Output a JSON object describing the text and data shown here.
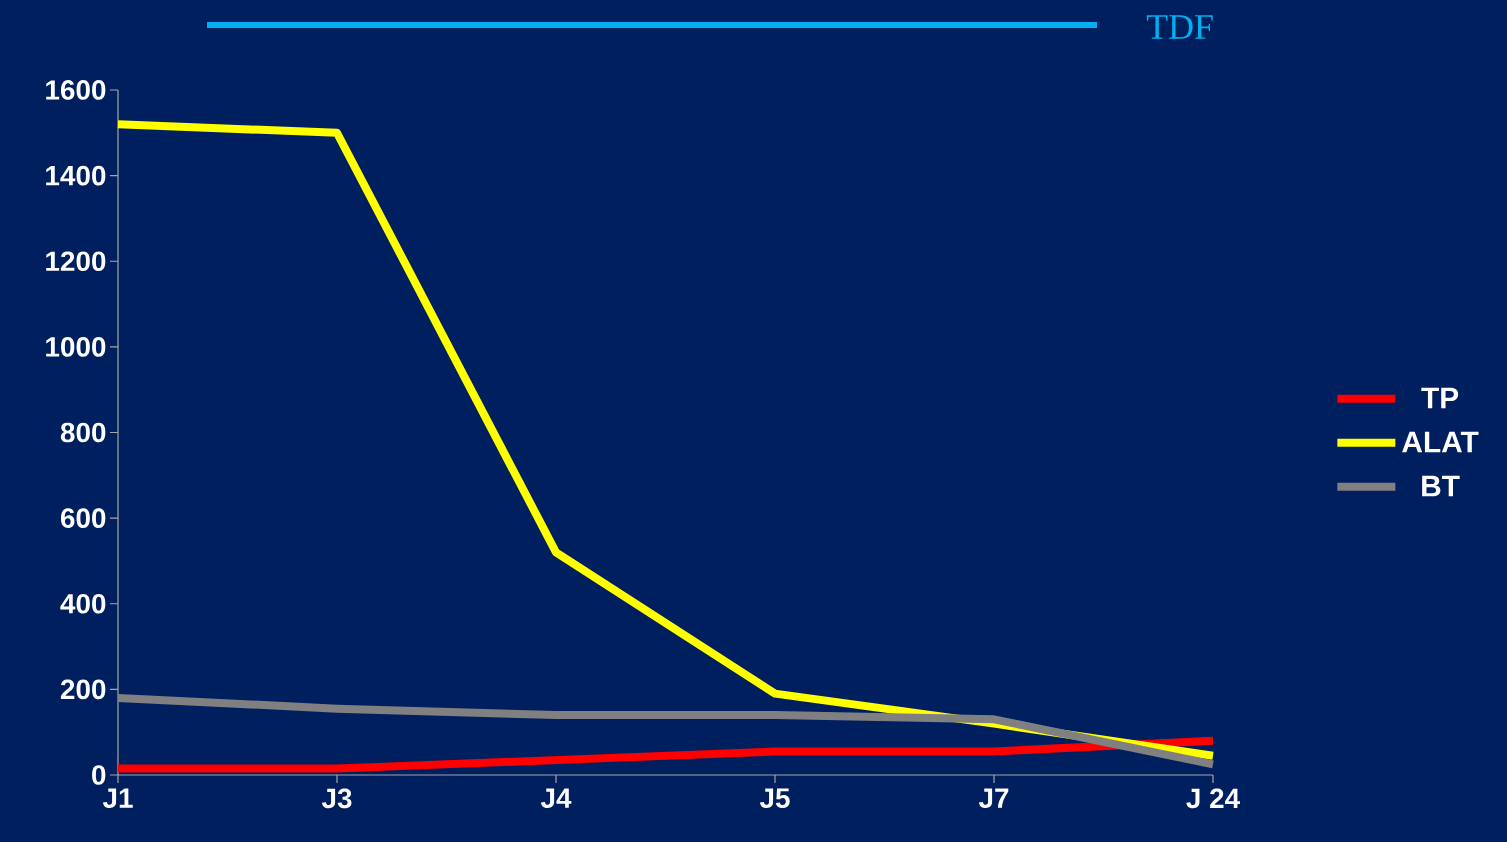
{
  "chart_data": {
    "type": "line",
    "categories": [
      "J1",
      "J3",
      "J4",
      "J5",
      "J7",
      "J 24"
    ],
    "series": [
      {
        "name": "TP",
        "color": "#ff0000",
        "values": [
          15,
          15,
          35,
          55,
          55,
          80
        ]
      },
      {
        "name": "ALAT",
        "color": "#ffff00",
        "values": [
          1520,
          1500,
          520,
          190,
          120,
          45
        ]
      },
      {
        "name": "BT",
        "color": "#808080",
        "values": [
          180,
          155,
          140,
          140,
          130,
          25
        ]
      }
    ],
    "ylim": [
      0,
      1600
    ],
    "yticks": [
      0,
      200,
      400,
      600,
      800,
      1000,
      1200,
      1400,
      1600
    ],
    "legend": "right",
    "annotations": [
      "TDF"
    ]
  }
}
